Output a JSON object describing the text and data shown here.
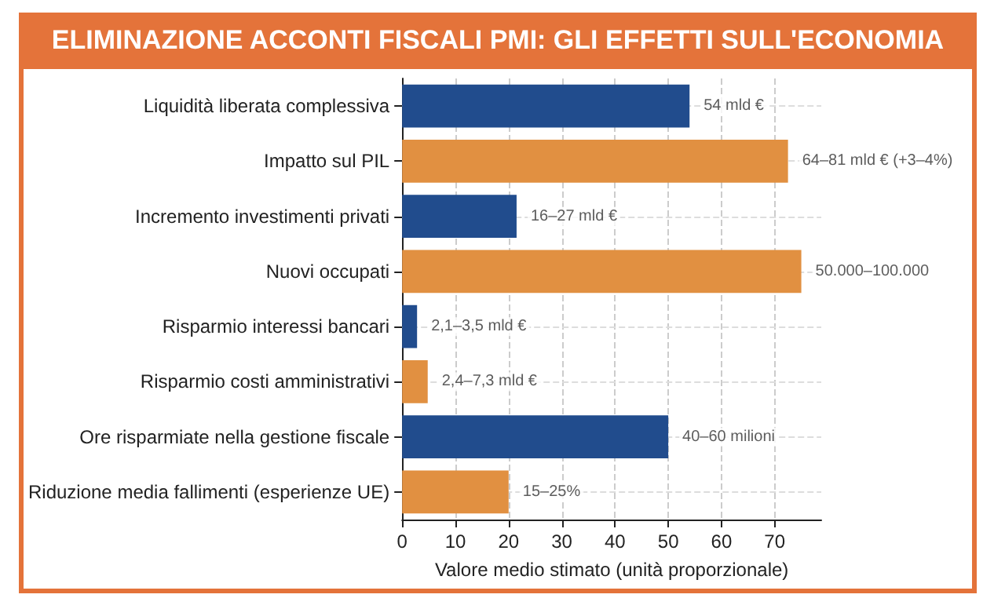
{
  "chart_data": {
    "type": "bar",
    "orientation": "horizontal",
    "title": "ELIMINAZIONE ACCONTI FISCALI PMI: GLI EFFETTI SULL'ECONOMIA",
    "xlabel": "Valore medio stimato (unità proporzionale)",
    "categories": [
      "Liquidità liberata complessiva",
      "Impatto sul PIL",
      "Incremento investimenti privati",
      "Nuovi occupati",
      "Risparmio interessi bancari",
      "Risparmio costi amministrativi",
      "Ore risparmiate nella gestione fiscale",
      "Riduzione media fallimenti (esperienze UE)"
    ],
    "values": [
      54,
      72.5,
      21.5,
      75,
      2.8,
      4.8,
      50,
      20
    ],
    "colors": [
      "#214c8d",
      "#e19041",
      "#214c8d",
      "#e19041",
      "#214c8d",
      "#e19041",
      "#214c8d",
      "#e19041"
    ],
    "annotations": [
      {
        "text": "54 mld €",
        "x": 54,
        "y": "Liquidità liberata complessiva"
      },
      {
        "text": "64–81 mld € (+3–4%)",
        "x": 72.5,
        "y": "Impatto sul PIL"
      },
      {
        "text": "16–27 mld €",
        "x": 21.5,
        "y": "Incremento investimenti privati"
      },
      {
        "text": "50.000–100.000",
        "x": 75,
        "y": "Nuovi occupati"
      },
      {
        "text": "2,1–3,5 mld €",
        "x": 2.8,
        "y": "Risparmio interessi bancari"
      },
      {
        "text": "2,4–7,3 mld €",
        "x": 4.8,
        "y": "Risparmio costi amministrativi"
      },
      {
        "text": "40–60 milioni",
        "x": 50,
        "y": "Ore risparmiate nella gestione fiscale"
      },
      {
        "text": "15–25%",
        "x": 20,
        "y": "Riduzione media fallimenti (esperienze UE)"
      }
    ],
    "xlim": [
      0,
      78.75
    ],
    "xticks": [
      0,
      10,
      20,
      30,
      40,
      50,
      60,
      70
    ],
    "grid": true
  }
}
